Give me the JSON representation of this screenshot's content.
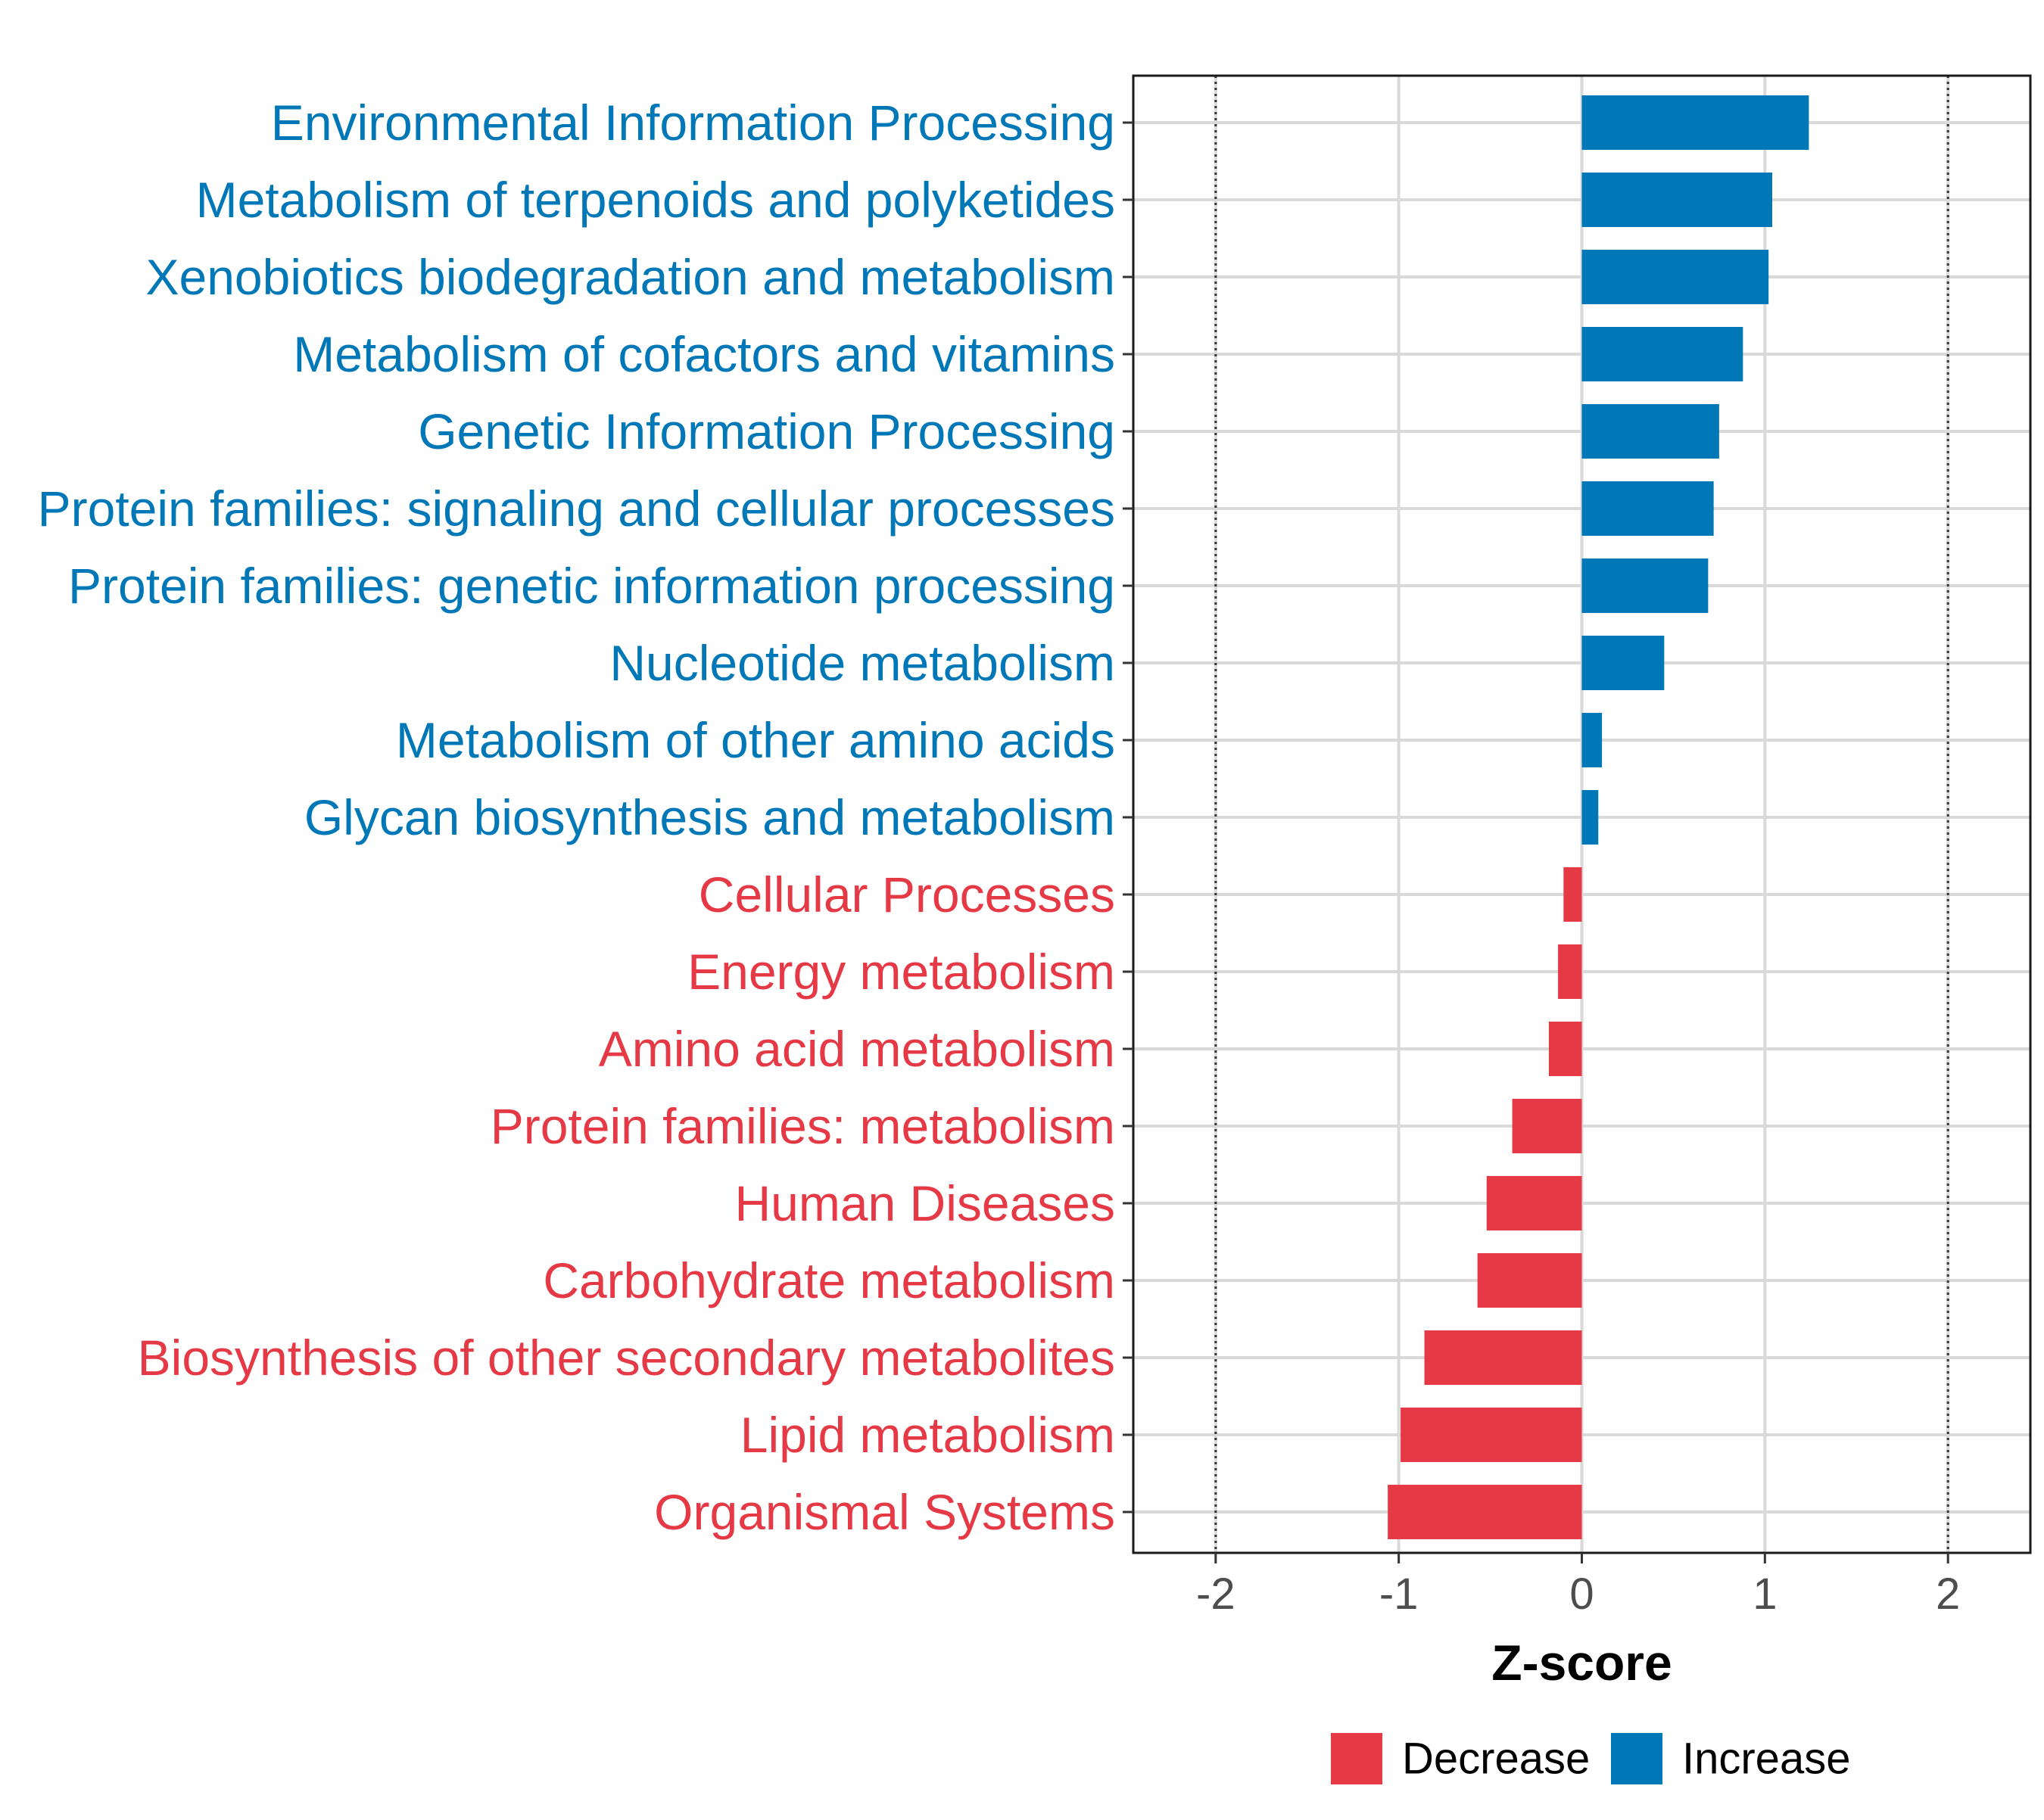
{
  "chart_data": {
    "type": "bar",
    "orientation": "horizontal",
    "title": "",
    "xlabel": "Z-score",
    "ylabel": "",
    "xlim": [
      -2.45,
      2.45
    ],
    "xticks": [
      -2,
      -1,
      0,
      1,
      2
    ],
    "xtick_labels": [
      "-2",
      "-1",
      "0",
      "1",
      "2"
    ],
    "reference_lines": [
      -2,
      2
    ],
    "grid": true,
    "legend_position": "bottom",
    "colors": {
      "Decrease": "#E63946",
      "Increase": "#0077B6"
    },
    "legend": [
      {
        "label": "Decrease",
        "color": "#E63946"
      },
      {
        "label": "Increase",
        "color": "#0077B6"
      }
    ],
    "categories": [
      "Environmental Information Processing",
      "Metabolism of terpenoids and polyketides",
      "Xenobiotics biodegradation and metabolism",
      "Metabolism of cofactors and vitamins",
      "Genetic Information Processing",
      "Protein families: signaling and cellular processes",
      "Protein families: genetic information processing",
      "Nucleotide metabolism",
      "Metabolism of other amino acids",
      "Glycan biosynthesis and metabolism",
      "Cellular Processes",
      "Energy metabolism",
      "Amino acid metabolism",
      "Protein families: metabolism",
      "Human Diseases",
      "Carbohydrate metabolism",
      "Biosynthesis of other secondary metabolites",
      "Lipid metabolism",
      "Organismal Systems"
    ],
    "values": [
      1.24,
      1.04,
      1.02,
      0.88,
      0.75,
      0.72,
      0.69,
      0.45,
      0.11,
      0.09,
      -0.1,
      -0.13,
      -0.18,
      -0.38,
      -0.52,
      -0.57,
      -0.86,
      -0.99,
      -1.06
    ],
    "groups": [
      "Increase",
      "Increase",
      "Increase",
      "Increase",
      "Increase",
      "Increase",
      "Increase",
      "Increase",
      "Increase",
      "Increase",
      "Decrease",
      "Decrease",
      "Decrease",
      "Decrease",
      "Decrease",
      "Decrease",
      "Decrease",
      "Decrease",
      "Decrease"
    ]
  }
}
